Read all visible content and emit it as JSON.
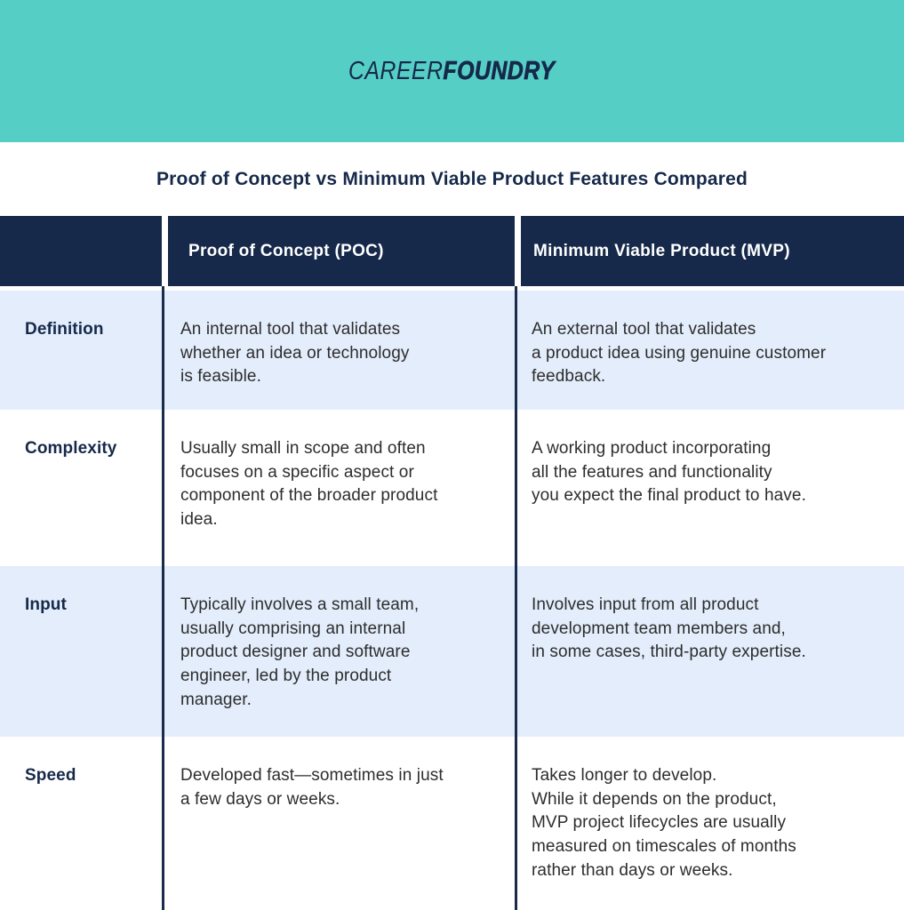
{
  "brand": {
    "logo_career": "CAREER",
    "logo_foundry": "FOUNDRY"
  },
  "title": "Proof of Concept vs Minimum Viable Product Features Compared",
  "table": {
    "header": {
      "label_col": "",
      "poc": "Proof of Concept (POC)",
      "mvp": "Minimum Viable Product (MVP)"
    },
    "rows": [
      {
        "label": "Definition",
        "poc": "An internal tool that validates\nwhether an idea or technology\nis feasible.",
        "mvp": "An external tool that validates\na product idea using genuine customer\nfeedback."
      },
      {
        "label": "Complexity",
        "poc": "Usually small in scope and often\nfocuses on a specific aspect or\ncomponent of the broader product\nidea.",
        "mvp": "A working product incorporating\nall the features and functionality\nyou expect the final product to have."
      },
      {
        "label": "Input",
        "poc": "Typically involves a small team,\nusually comprising an internal\nproduct designer and software\nengineer, led by the product\nmanager.",
        "mvp": "Involves input from all product\ndevelopment team members and,\nin some cases, third-party expertise."
      },
      {
        "label": "Speed",
        "poc": "Developed fast—sometimes in just\na few days or weeks.",
        "mvp": "Takes longer to develop.\nWhile it depends on the product,\nMVP project lifecycles are usually\nmeasured on timescales of months\nrather than days or weeks."
      }
    ]
  },
  "colors": {
    "teal": "#55CFC6",
    "navy": "#16294A",
    "divider_navy": "#1A2B4C",
    "row_light_blue": "#E3EDFB",
    "body_text": "#2D2D2D",
    "header_text": "#FFFFFF"
  }
}
